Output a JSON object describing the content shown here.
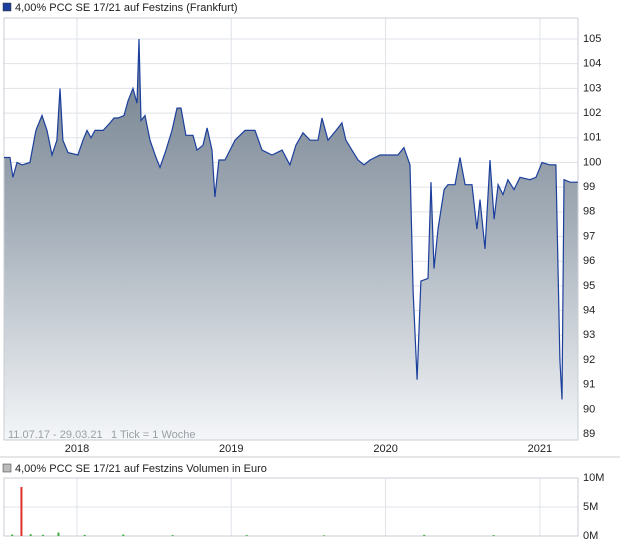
{
  "chart_data": [
    {
      "type": "area",
      "title": "4,00% PCC SE 17/21 auf Festzins (Frankfurt)",
      "range_note": "11.07.17 - 29.03.21",
      "tick_note": "1 Tick = 1 Woche",
      "color": "#1c3f9c",
      "x": [
        2017.527,
        2017.566,
        2017.585,
        2017.611,
        2017.644,
        2017.695,
        2017.734,
        2017.773,
        2017.806,
        2017.838,
        2017.87,
        2017.89,
        2017.909,
        2017.942,
        2018.006,
        2018.039,
        2018.065,
        2018.091,
        2018.117,
        2018.169,
        2018.214,
        2018.24,
        2018.266,
        2018.305,
        2018.331,
        2018.363,
        2018.389,
        2018.402,
        2018.415,
        2018.441,
        2018.473,
        2018.512,
        2018.538,
        2018.577,
        2018.616,
        2018.648,
        2018.674,
        2018.706,
        2018.752,
        2018.778,
        2018.817,
        2018.843,
        2018.875,
        2018.894,
        2018.92,
        2018.959,
        2019.024,
        2019.089,
        2019.154,
        2019.199,
        2019.264,
        2019.329,
        2019.38,
        2019.419,
        2019.465,
        2019.51,
        2019.562,
        2019.588,
        2019.627,
        2019.679,
        2019.717,
        2019.743,
        2019.782,
        2019.821,
        2019.86,
        2019.899,
        2019.964,
        2020.029,
        2020.08,
        2020.119,
        2020.158,
        2020.178,
        2020.204,
        2020.229,
        2020.275,
        2020.294,
        2020.314,
        2020.34,
        2020.379,
        2020.404,
        2020.45,
        2020.482,
        2020.515,
        2020.56,
        2020.592,
        2020.612,
        2020.644,
        2020.677,
        2020.703,
        2020.729,
        2020.761,
        2020.793,
        2020.832,
        2020.871,
        2020.936,
        2020.975,
        2021.014,
        2021.065,
        2021.104,
        2021.13,
        2021.143,
        2021.156,
        2021.195,
        2021.247
      ],
      "values": [
        100.2,
        100.2,
        99.4,
        100,
        99.9,
        100,
        101.3,
        101.9,
        101.3,
        100.3,
        100.9,
        103,
        100.9,
        100.4,
        100.3,
        100.9,
        101.3,
        101,
        101.3,
        101.3,
        101.6,
        101.8,
        101.8,
        101.9,
        102.5,
        103,
        102.4,
        105,
        101.7,
        101.9,
        100.9,
        100.2,
        99.8,
        100.5,
        101.3,
        102.2,
        102.2,
        101.1,
        101.1,
        100.5,
        100.7,
        101.4,
        100.5,
        98.6,
        100.1,
        100.1,
        100.9,
        101.3,
        101.3,
        100.5,
        100.3,
        100.5,
        99.9,
        100.7,
        101.2,
        100.9,
        100.9,
        101.8,
        100.9,
        101.3,
        101.6,
        100.9,
        100.5,
        100.1,
        99.9,
        100.1,
        100.3,
        100.3,
        100.3,
        100.6,
        99.9,
        94.8,
        91.2,
        95.2,
        95.3,
        99.2,
        95.7,
        97.3,
        98.9,
        99.1,
        99.1,
        100.2,
        99.1,
        99.1,
        97.3,
        98.5,
        96.5,
        100.1,
        97.7,
        99.1,
        98.7,
        99.3,
        98.9,
        99.4,
        99.3,
        99.4,
        100,
        99.9,
        99.9,
        92,
        90.4,
        99.3,
        99.2,
        99.2
      ],
      "xlim": [
        2017.527,
        2021.247
      ],
      "xticks": [
        2018,
        2019,
        2020,
        2021
      ],
      "ylim": [
        88.76,
        105.85
      ],
      "yticks": [
        89,
        90,
        91,
        92,
        93,
        94,
        95,
        96,
        97,
        98,
        99,
        100,
        101,
        102,
        103,
        104,
        105
      ],
      "grid": true
    },
    {
      "type": "bar",
      "title": "4,00% PCC SE 17/21 auf Festzins Volumen in Euro",
      "x": [
        2017.58,
        2017.64,
        2017.7,
        2017.78,
        2017.88,
        2018.05,
        2018.3,
        2018.62,
        2019.1,
        2019.6,
        2020.25,
        2020.7
      ],
      "values": [
        250000,
        8450000,
        300000,
        200000,
        600000,
        200000,
        250000,
        150000,
        150000,
        120000,
        200000,
        150000
      ],
      "colors": [
        "#3fae3f",
        "#e03030",
        "#3fae3f",
        "#3fae3f",
        "#3fae3f",
        "#3fae3f",
        "#3fae3f",
        "#3fae3f",
        "#3fae3f",
        "#3fae3f",
        "#3fae3f",
        "#3fae3f"
      ],
      "ylim": [
        0,
        10000000
      ],
      "yticks": [
        {
          "value": 0,
          "label": "0M"
        },
        {
          "value": 5000000,
          "label": "5M"
        },
        {
          "value": 10000000,
          "label": "10M"
        }
      ],
      "grid": true
    }
  ]
}
